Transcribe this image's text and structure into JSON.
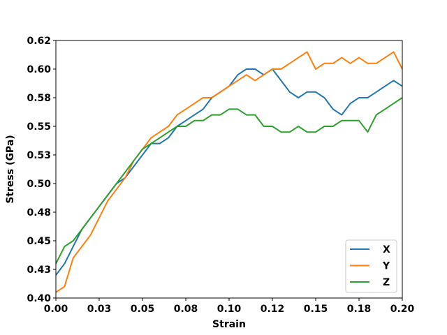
{
  "chart_data": {
    "type": "line",
    "title": "",
    "xlabel": "Strain",
    "ylabel": "Stress (GPa)",
    "xlim": [
      0.0,
      0.2
    ],
    "ylim": [
      0.4,
      0.625
    ],
    "x_ticks": [
      0.0,
      0.025,
      0.05,
      0.075,
      0.1,
      0.125,
      0.15,
      0.175,
      0.2
    ],
    "x_tick_labels": [
      "0.00",
      "0.03",
      "0.05",
      "0.08",
      "0.10",
      "0.12",
      "0.15",
      "0.18",
      "0.20"
    ],
    "y_ticks": [
      0.4,
      0.425,
      0.45,
      0.475,
      0.5,
      0.525,
      0.55,
      0.575,
      0.6,
      0.625
    ],
    "y_tick_labels": [
      "0.40",
      "0.43",
      "0.45",
      "0.48",
      "0.50",
      "0.53",
      "0.55",
      "0.58",
      "0.60",
      "0.62"
    ],
    "grid": false,
    "legend_position": "lower-right",
    "x": [
      0.0,
      0.005,
      0.01,
      0.015,
      0.02,
      0.025,
      0.03,
      0.035,
      0.04,
      0.045,
      0.05,
      0.055,
      0.06,
      0.065,
      0.07,
      0.075,
      0.08,
      0.085,
      0.09,
      0.095,
      0.1,
      0.105,
      0.11,
      0.115,
      0.12,
      0.125,
      0.13,
      0.135,
      0.14,
      0.145,
      0.15,
      0.155,
      0.16,
      0.165,
      0.17,
      0.175,
      0.18,
      0.185,
      0.19,
      0.195,
      0.2
    ],
    "series": [
      {
        "name": "X",
        "color": "#1f77b4",
        "values": [
          0.42,
          0.43,
          0.445,
          0.46,
          0.47,
          0.48,
          0.49,
          0.5,
          0.505,
          0.515,
          0.525,
          0.535,
          0.535,
          0.54,
          0.55,
          0.555,
          0.56,
          0.565,
          0.575,
          0.58,
          0.585,
          0.595,
          0.6,
          0.6,
          0.595,
          0.6,
          0.59,
          0.58,
          0.575,
          0.58,
          0.58,
          0.575,
          0.565,
          0.56,
          0.57,
          0.575,
          0.575,
          0.58,
          0.585,
          0.59,
          0.585
        ]
      },
      {
        "name": "Y",
        "color": "#ff7f0e",
        "values": [
          0.405,
          0.41,
          0.435,
          0.445,
          0.455,
          0.47,
          0.485,
          0.495,
          0.505,
          0.52,
          0.53,
          0.54,
          0.545,
          0.55,
          0.56,
          0.565,
          0.57,
          0.575,
          0.575,
          0.58,
          0.585,
          0.59,
          0.595,
          0.59,
          0.595,
          0.6,
          0.6,
          0.605,
          0.61,
          0.615,
          0.6,
          0.605,
          0.605,
          0.61,
          0.605,
          0.61,
          0.605,
          0.605,
          0.61,
          0.615,
          0.6
        ]
      },
      {
        "name": "Z",
        "color": "#2ca02c",
        "values": [
          0.43,
          0.445,
          0.45,
          0.46,
          0.47,
          0.48,
          0.49,
          0.5,
          0.51,
          0.52,
          0.53,
          0.535,
          0.54,
          0.545,
          0.55,
          0.55,
          0.555,
          0.555,
          0.56,
          0.56,
          0.565,
          0.565,
          0.56,
          0.56,
          0.55,
          0.55,
          0.545,
          0.545,
          0.55,
          0.545,
          0.545,
          0.55,
          0.55,
          0.555,
          0.555,
          0.555,
          0.545,
          0.56,
          0.565,
          0.57,
          0.575
        ]
      }
    ]
  }
}
